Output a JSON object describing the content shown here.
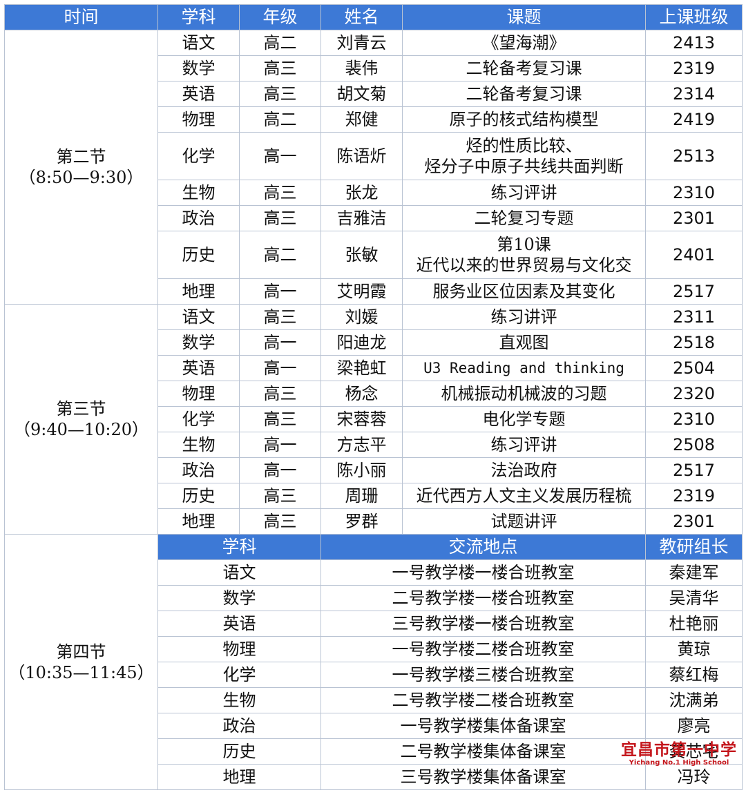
{
  "headers": [
    "时间",
    "学科",
    "年级",
    "姓名",
    "课题",
    "上课班级"
  ],
  "periods": [
    {
      "name": "第二节",
      "time": "（8:50—9:30）",
      "rows": [
        {
          "subject": "语文",
          "grade": "高二",
          "teacher": "刘青云",
          "topic": [
            "《望海潮》"
          ],
          "cls": "2413"
        },
        {
          "subject": "数学",
          "grade": "高三",
          "teacher": "裴伟",
          "topic": [
            "二轮备考复习课"
          ],
          "cls": "2319"
        },
        {
          "subject": "英语",
          "grade": "高三",
          "teacher": "胡文菊",
          "topic": [
            "二轮备考复习课"
          ],
          "cls": "2314"
        },
        {
          "subject": "物理",
          "grade": "高二",
          "teacher": "郑健",
          "topic": [
            "原子的核式结构模型"
          ],
          "cls": "2419"
        },
        {
          "subject": "化学",
          "grade": "高一",
          "teacher": "陈语炘",
          "topic": [
            "烃的性质比较、",
            "烃分子中原子共线共面判断"
          ],
          "cls": "2513"
        },
        {
          "subject": "生物",
          "grade": "高三",
          "teacher": "张龙",
          "topic": [
            "练习评讲"
          ],
          "cls": "2310"
        },
        {
          "subject": "政治",
          "grade": "高三",
          "teacher": "吉雅洁",
          "topic": [
            "二轮复习专题"
          ],
          "cls": "2301"
        },
        {
          "subject": "历史",
          "grade": "高二",
          "teacher": "张敏",
          "topic": [
            "第10课",
            "近代以来的世界贸易与文化交"
          ],
          "cls": "2401"
        },
        {
          "subject": "地理",
          "grade": "高一",
          "teacher": "艾明霞",
          "topic": [
            "服务业区位因素及其变化"
          ],
          "cls": "2517"
        }
      ]
    },
    {
      "name": "第三节",
      "time": "（9:40—10:20）",
      "rows": [
        {
          "subject": "语文",
          "grade": "高三",
          "teacher": "刘媛",
          "topic": [
            "练习讲评"
          ],
          "cls": "2311"
        },
        {
          "subject": "数学",
          "grade": "高一",
          "teacher": "阳迪龙",
          "topic": [
            "直观图"
          ],
          "cls": "2518"
        },
        {
          "subject": "英语",
          "grade": "高一",
          "teacher": "梁艳虹",
          "topic": [
            "U3 Reading and thinking"
          ],
          "cls": "2504",
          "mono": true
        },
        {
          "subject": "物理",
          "grade": "高三",
          "teacher": "杨念",
          "topic": [
            "机械振动机械波的习题"
          ],
          "cls": "2320"
        },
        {
          "subject": "化学",
          "grade": "高三",
          "teacher": "宋蓉蓉",
          "topic": [
            "电化学专题"
          ],
          "cls": "2310"
        },
        {
          "subject": "生物",
          "grade": "高一",
          "teacher": "方志平",
          "topic": [
            "练习评讲"
          ],
          "cls": "2508"
        },
        {
          "subject": "政治",
          "grade": "高一",
          "teacher": "陈小丽",
          "topic": [
            "法治政府"
          ],
          "cls": "2517"
        },
        {
          "subject": "历史",
          "grade": "高三",
          "teacher": "周珊",
          "topic": [
            "近代西方人文主义发展历程梳"
          ],
          "cls": "2319"
        },
        {
          "subject": "地理",
          "grade": "高三",
          "teacher": "罗群",
          "topic": [
            "试题讲评"
          ],
          "cls": "2301"
        }
      ]
    }
  ],
  "period4": {
    "name": "第四节",
    "time": "（10:35—11:45）",
    "headers": [
      "学科",
      "交流地点",
      "教研组长"
    ],
    "rows": [
      {
        "subject": "语文",
        "location": "一号教学楼一楼合班教室",
        "leader": "秦建军"
      },
      {
        "subject": "数学",
        "location": "二号教学楼一楼合班教室",
        "leader": "吴清华"
      },
      {
        "subject": "英语",
        "location": "三号教学楼一楼合班教室",
        "leader": "杜艳丽"
      },
      {
        "subject": "物理",
        "location": "一号教学楼二楼合班教室",
        "leader": "黄琼"
      },
      {
        "subject": "化学",
        "location": "一号教学楼三楼合班教室",
        "leader": "蔡红梅"
      },
      {
        "subject": "生物",
        "location": "二号教学楼二楼合班教室",
        "leader": "沈满弟"
      },
      {
        "subject": "政治",
        "location": "一号教学楼集体备课室",
        "leader": "廖亮"
      },
      {
        "subject": "历史",
        "location": "二号教学楼集体备课室",
        "leader": "龚芯宅"
      },
      {
        "subject": "地理",
        "location": "三号教学楼集体备课室",
        "leader": "冯玲"
      }
    ]
  },
  "watermark": {
    "cn": "宜昌市第一中学",
    "en": "Yichang No.1 High School"
  },
  "colors": {
    "header_bg": "#3d79d6",
    "header_fg": "#ffffff",
    "border": "#b9c3d3",
    "watermark": "#c4161c"
  }
}
